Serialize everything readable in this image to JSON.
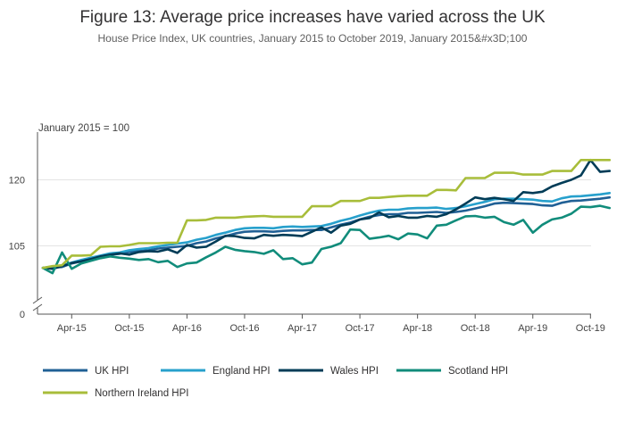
{
  "header": {
    "title": "Figure 13: Average price increases have varied across the UK",
    "subtitle": "House Price Index, UK countries, January 2015 to October 2019, January 2015&#x3D;100"
  },
  "colors": {
    "uk": "#206095",
    "england": "#27a0cc",
    "wales": "#003c57",
    "scotland": "#118c7b",
    "northern_ireland": "#a8bd3a"
  },
  "chart_data": {
    "type": "line",
    "title": "Figure 13: Average price increases have varied across the UK",
    "subtitle": "House Price Index, UK countries, January 2015 to October 2019, January 2015&#x3D;100",
    "unit_label": "January 2015 = 100",
    "x_start": "Jan 2015",
    "x_end": "Oct 2019",
    "x_tick_labels": [
      "Apr-15",
      "Oct-15",
      "Apr-16",
      "Oct-16",
      "Apr-17",
      "Oct-17",
      "Apr-18",
      "Oct-18",
      "Apr-19",
      "Oct-19"
    ],
    "y_tick_labels": [
      "0",
      "105",
      "120"
    ],
    "y_axis_break": true,
    "ylim": [
      0,
      125
    ],
    "grid": true,
    "legend_position": "bottom",
    "series": [
      {
        "name": "UK HPI",
        "key": "uk",
        "values": [
          100,
          100.1,
          100.2,
          101,
          101.5,
          102,
          102.5,
          103,
          103.2,
          103.6,
          103.8,
          104,
          104.4,
          104.6,
          104.8,
          105,
          105.6,
          106,
          106.7,
          107.2,
          107.8,
          108.2,
          108.3,
          108.3,
          108.2,
          108.4,
          108.5,
          108.5,
          108.6,
          108.6,
          109.2,
          109.8,
          110.3,
          111,
          111.6,
          112,
          112.2,
          112.2,
          112.5,
          112.5,
          112.6,
          112.7,
          112.5,
          112.7,
          113,
          113.5,
          114,
          114.6,
          114.8,
          114.7,
          114.6,
          114.5,
          114.2,
          114.1,
          114.8,
          115.2,
          115.3,
          115.5,
          115.7,
          116
        ]
      },
      {
        "name": "England HPI",
        "key": "england",
        "values": [
          100,
          100.3,
          100.5,
          101.2,
          101.8,
          102.3,
          102.8,
          103.3,
          103.5,
          104,
          104.3,
          104.5,
          104.9,
          105.2,
          105.5,
          105.8,
          106.4,
          106.8,
          107.5,
          108,
          108.6,
          109,
          109.1,
          109.1,
          109,
          109.3,
          109.4,
          109.3,
          109.4,
          109.5,
          110,
          110.7,
          111.2,
          111.9,
          112.5,
          113,
          113.2,
          113.2,
          113.5,
          113.6,
          113.6,
          113.7,
          113.4,
          113.6,
          114,
          114.5,
          115,
          115.6,
          115.7,
          115.7,
          115.6,
          115.5,
          115.2,
          115.1,
          115.8,
          116.2,
          116.3,
          116.5,
          116.7,
          117
        ]
      },
      {
        "name": "Wales HPI",
        "key": "wales",
        "values": [
          100,
          99.8,
          100.4,
          101.1,
          101.5,
          102,
          102.6,
          103,
          103.3,
          103,
          103.6,
          103.8,
          103.7,
          104.2,
          103.4,
          105.2,
          104.6,
          104.8,
          106,
          107.3,
          107.2,
          106.8,
          106.7,
          107.5,
          107.3,
          107.5,
          107.4,
          107.2,
          108.2,
          109.2,
          108,
          109.6,
          110,
          111,
          111.3,
          112.6,
          111.5,
          111.8,
          111.4,
          111.4,
          111.8,
          111.6,
          112.2,
          113.3,
          114.6,
          116,
          115.6,
          115.9,
          115.6,
          115.2,
          117.2,
          117,
          117.3,
          118.5,
          119.3,
          120,
          121,
          124.5,
          121.8,
          122
        ]
      },
      {
        "name": "Scotland HPI",
        "key": "scotland",
        "values": [
          100,
          98.8,
          103.5,
          99.8,
          101,
          101.6,
          102.2,
          102.6,
          102.3,
          102.1,
          101.8,
          102,
          101.3,
          101.6,
          100.2,
          101,
          101.2,
          102.4,
          103.5,
          104.8,
          104.1,
          103.8,
          103.6,
          103.2,
          104,
          102,
          102.2,
          100.8,
          101.2,
          104.3,
          104.8,
          105.6,
          108.7,
          108.6,
          106.6,
          106.9,
          107.3,
          106.5,
          107.8,
          107.6,
          106.7,
          109.6,
          109.8,
          110.8,
          111.7,
          111.8,
          111.4,
          111.6,
          110.4,
          109.8,
          110.9,
          108,
          109.8,
          111,
          111.4,
          112.3,
          113.9,
          113.8,
          114.1,
          113.6
        ]
      },
      {
        "name": "Northern Ireland HPI",
        "key": "northern_ireland",
        "values": [
          100,
          100.4,
          100.6,
          102.8,
          102.8,
          102.9,
          104.8,
          104.9,
          104.9,
          105.2,
          105.6,
          105.6,
          105.6,
          105.7,
          105.7,
          110.8,
          110.8,
          110.9,
          111.4,
          111.4,
          111.4,
          111.6,
          111.7,
          111.8,
          111.6,
          111.6,
          111.6,
          111.6,
          114,
          114,
          114,
          115.2,
          115.2,
          115.2,
          115.9,
          115.9,
          116.1,
          116.3,
          116.4,
          116.4,
          116.4,
          117.7,
          117.7,
          117.6,
          120.4,
          120.4,
          120.4,
          121.6,
          121.6,
          121.6,
          121.2,
          121.2,
          121.2,
          122,
          122,
          122,
          124.5,
          124.5,
          124.5,
          124.5
        ]
      }
    ]
  }
}
